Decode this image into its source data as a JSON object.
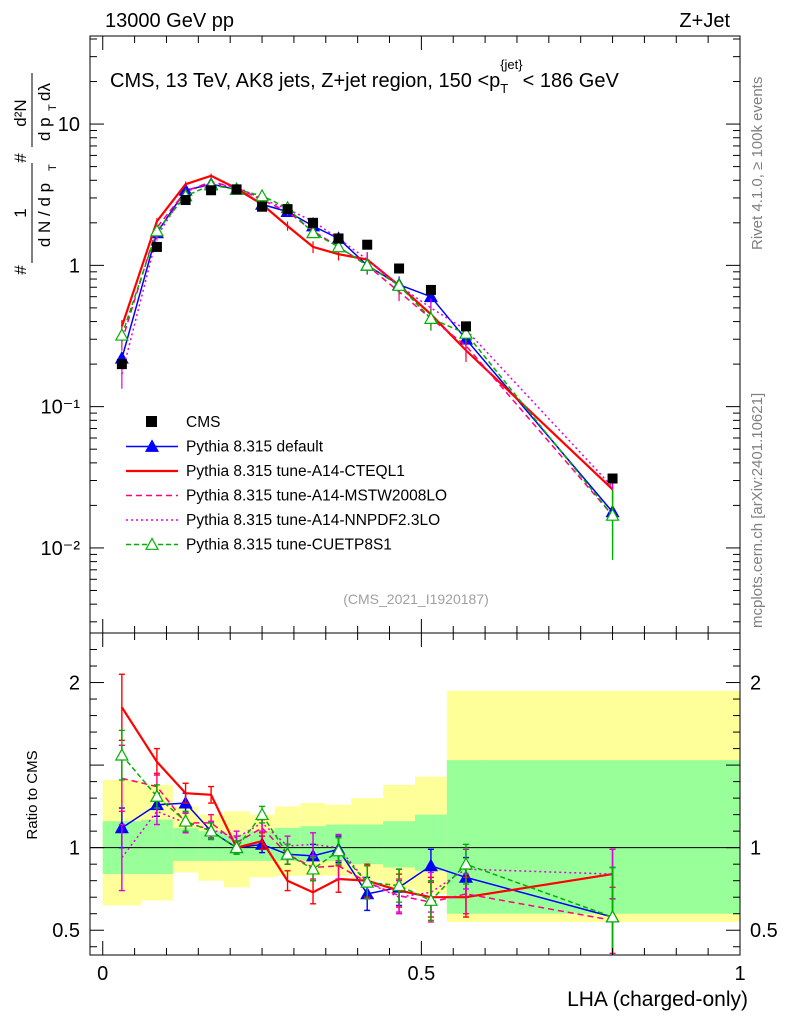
{
  "header": {
    "energy_label": "13000 GeV pp",
    "process_label": "Z+Jet",
    "rivet_label": "Rivet 4.1.0, ≥ 100k events",
    "source_label": "mcplots.cern.ch [arXiv:2401.10621]"
  },
  "chart_data": {
    "type": "line",
    "title": "CMS, 13 TeV, AK8 jets, Z+jet region, 150 <p_T^{jet}< 186 GeV",
    "title_parts": {
      "main": "CMS, 13 TeV, AK8 jets, Z+jet region, 150 <p",
      "sub": "T",
      "sup": "{jet}",
      "tail": "< 186 GeV"
    },
    "ylabel_parts": {
      "hash": "#",
      "one": "1",
      "dn": "d N / d p",
      "t": "T",
      "d2n": "d²N",
      "denom": "d p",
      "dlambda": "dλ"
    },
    "xlabel": "LHA (charged-only)",
    "ratio_ylabel": "Ratio to CMS",
    "analysis_id": "(CMS_2021_I1920187)",
    "xlim": [
      -0.02,
      1.0
    ],
    "ylim": [
      0.0025,
      42
    ],
    "ratio_ylim": [
      0.35,
      2.3
    ],
    "x_ticks": [
      {
        "v": 0,
        "label": "0"
      },
      {
        "v": 0.5,
        "label": "0.5"
      },
      {
        "v": 1,
        "label": "1"
      }
    ],
    "y_ticks": [
      {
        "v": 10,
        "label": "10"
      },
      {
        "v": 1,
        "label": "1"
      },
      {
        "v": 0.1,
        "label": "10⁻¹"
      },
      {
        "v": 0.01,
        "label": "10⁻²"
      }
    ],
    "ratio_ticks": [
      {
        "v": 2,
        "label": "2"
      },
      {
        "v": 1,
        "label": "1"
      },
      {
        "v": 0.5,
        "label": "0.5"
      }
    ],
    "bins": [
      {
        "lo": 0.0,
        "hi": 0.06
      },
      {
        "lo": 0.06,
        "hi": 0.11
      },
      {
        "lo": 0.11,
        "hi": 0.15
      },
      {
        "lo": 0.15,
        "hi": 0.19
      },
      {
        "lo": 0.19,
        "hi": 0.23
      },
      {
        "lo": 0.23,
        "hi": 0.27
      },
      {
        "lo": 0.27,
        "hi": 0.31
      },
      {
        "lo": 0.31,
        "hi": 0.35
      },
      {
        "lo": 0.35,
        "hi": 0.39
      },
      {
        "lo": 0.39,
        "hi": 0.44
      },
      {
        "lo": 0.44,
        "hi": 0.49
      },
      {
        "lo": 0.49,
        "hi": 0.54
      },
      {
        "lo": 0.54,
        "hi": 0.6
      },
      {
        "lo": 0.6,
        "hi": 1.0
      }
    ],
    "x": [
      0.03,
      0.085,
      0.13,
      0.17,
      0.21,
      0.25,
      0.29,
      0.33,
      0.37,
      0.415,
      0.465,
      0.515,
      0.57,
      0.8
    ],
    "data": {
      "name": "CMS",
      "values": [
        0.2,
        1.35,
        2.9,
        3.4,
        3.45,
        2.6,
        2.5,
        2.0,
        1.55,
        1.4,
        0.95,
        0.67,
        0.37,
        0.031
      ],
      "ratio_band_inner": [
        [
          0.84,
          1.16
        ],
        [
          0.84,
          1.17
        ],
        [
          0.92,
          1.12
        ],
        [
          0.92,
          1.1
        ],
        [
          0.92,
          1.08
        ],
        [
          0.92,
          1.1
        ],
        [
          0.92,
          1.12
        ],
        [
          0.92,
          1.13
        ],
        [
          0.92,
          1.14
        ],
        [
          0.9,
          1.14
        ],
        [
          0.88,
          1.16
        ],
        [
          0.86,
          1.2
        ],
        [
          0.6,
          1.53
        ],
        [
          0.6,
          1.53
        ]
      ],
      "ratio_band_outer": [
        [
          0.65,
          1.41
        ],
        [
          0.68,
          1.38
        ],
        [
          0.85,
          1.25
        ],
        [
          0.8,
          1.2
        ],
        [
          0.76,
          1.22
        ],
        [
          0.82,
          1.2
        ],
        [
          0.83,
          1.25
        ],
        [
          0.83,
          1.27
        ],
        [
          0.83,
          1.26
        ],
        [
          0.8,
          1.3
        ],
        [
          0.75,
          1.38
        ],
        [
          0.72,
          1.43
        ],
        [
          0.55,
          1.95
        ],
        [
          0.55,
          1.95
        ]
      ]
    },
    "series": [
      {
        "name": "Pythia 8.315 default",
        "color": "#0000ff",
        "dash": "",
        "marker": "triangle-filled",
        "values": [
          0.22,
          1.7,
          3.4,
          3.75,
          3.45,
          2.7,
          2.4,
          1.9,
          1.55,
          1.0,
          0.73,
          0.6,
          0.3,
          0.018
        ],
        "ratio": [
          1.12,
          1.26,
          1.27,
          1.1,
          1.0,
          1.02,
          0.96,
          0.95,
          0.99,
          0.72,
          0.76,
          0.89,
          0.82,
          0.58
        ],
        "ratio_err": [
          0.12,
          0.07,
          0.06,
          0.05,
          0.04,
          0.05,
          0.06,
          0.07,
          0.08,
          0.1,
          0.11,
          0.1,
          0.12,
          0.3
        ]
      },
      {
        "name": "Pythia 8.315 tune-A14-CTEQL1",
        "color": "#ff0000",
        "dash": "",
        "marker": "none",
        "values": [
          0.37,
          2.05,
          3.75,
          4.3,
          3.5,
          2.7,
          1.9,
          1.35,
          1.2,
          1.1,
          0.72,
          0.45,
          0.25,
          0.026
        ],
        "ratio": [
          1.85,
          1.52,
          1.33,
          1.32,
          1.0,
          1.04,
          0.8,
          0.73,
          0.81,
          0.8,
          0.74,
          0.7,
          0.7,
          0.84
        ],
        "ratio_err": [
          0.2,
          0.08,
          0.06,
          0.05,
          0.04,
          0.05,
          0.06,
          0.07,
          0.08,
          0.1,
          0.1,
          0.12,
          0.12,
          0.15
        ]
      },
      {
        "name": "Pythia 8.315 tune-A14-MSTW2008LO",
        "color": "#ff0080",
        "dash": "6,4",
        "marker": "none",
        "values": [
          0.29,
          1.85,
          3.35,
          3.9,
          3.55,
          2.9,
          2.4,
          1.75,
          1.35,
          1.0,
          0.65,
          0.42,
          0.27,
          0.017
        ],
        "ratio": [
          1.42,
          1.37,
          1.15,
          1.15,
          1.03,
          1.12,
          0.96,
          0.88,
          0.89,
          0.79,
          0.71,
          0.67,
          0.72,
          0.56
        ],
        "ratio_err": [
          0.2,
          0.08,
          0.06,
          0.05,
          0.04,
          0.05,
          0.06,
          0.07,
          0.08,
          0.1,
          0.1,
          0.12,
          0.12,
          0.2
        ]
      },
      {
        "name": "Pythia 8.315 tune-A14-NNPDF2.3LO",
        "color": "#e000e0",
        "dash": "2,3",
        "marker": "none",
        "values": [
          0.17,
          1.6,
          3.35,
          3.75,
          3.6,
          2.95,
          2.5,
          2.05,
          1.55,
          1.1,
          0.72,
          0.5,
          0.35,
          0.027
        ],
        "ratio": [
          0.94,
          1.22,
          1.15,
          1.11,
          1.06,
          1.15,
          1.01,
          1.02,
          1.0,
          0.79,
          0.7,
          0.73,
          0.87,
          0.84
        ],
        "ratio_err": [
          0.2,
          0.08,
          0.06,
          0.05,
          0.04,
          0.05,
          0.06,
          0.07,
          0.08,
          0.1,
          0.1,
          0.12,
          0.12,
          0.15
        ]
      },
      {
        "name": "Pythia 8.315 tune-CUETP8S1",
        "color": "#00b000",
        "dash": "5,3",
        "marker": "triangle-open",
        "values": [
          0.32,
          1.75,
          3.1,
          3.7,
          3.45,
          3.1,
          2.55,
          1.7,
          1.35,
          1.0,
          0.72,
          0.42,
          0.33,
          0.017
        ],
        "ratio": [
          1.56,
          1.31,
          1.16,
          1.1,
          1.0,
          1.2,
          0.96,
          0.87,
          0.98,
          0.79,
          0.77,
          0.68,
          0.9,
          0.58
        ],
        "ratio_err": [
          0.15,
          0.07,
          0.06,
          0.05,
          0.04,
          0.05,
          0.06,
          0.07,
          0.08,
          0.1,
          0.1,
          0.12,
          0.12,
          0.3
        ]
      }
    ]
  }
}
